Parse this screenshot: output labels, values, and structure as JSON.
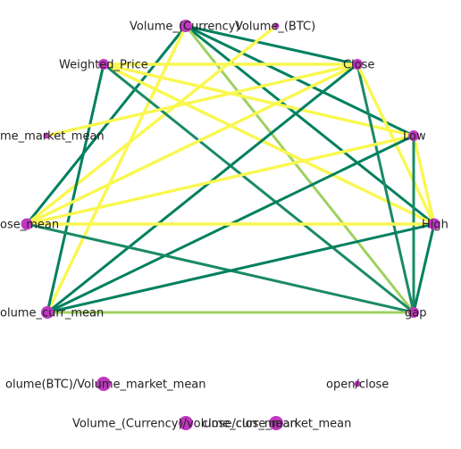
{
  "nodes": [
    {
      "id": "vol_cur",
      "label": "Volume_(Currency)",
      "size": 7,
      "color": "#c037c0"
    },
    {
      "id": "vol_btc",
      "label": "Volume_(BTC)",
      "size": 3.5,
      "color": "#c037c0"
    },
    {
      "id": "wprice",
      "label": "Weighted_Price",
      "size": 6,
      "color": "#c037c0"
    },
    {
      "id": "close",
      "label": "Close",
      "size": 6,
      "color": "#c037c0"
    },
    {
      "id": "vmm",
      "label": "me_market_mean",
      "size": 3.5,
      "color": "#c037c0"
    },
    {
      "id": "low",
      "label": "Low",
      "size": 6,
      "color": "#c037c0"
    },
    {
      "id": "cmean",
      "label": "ose_mean",
      "size": 6.5,
      "color": "#c037c0"
    },
    {
      "id": "high",
      "label": "High",
      "size": 6.5,
      "color": "#c037c0"
    },
    {
      "id": "vcmean",
      "label": "olume_curr_mean",
      "size": 7,
      "color": "#c037c0"
    },
    {
      "id": "gap",
      "label": "gap",
      "size": 6,
      "color": "#c037c0"
    },
    {
      "id": "vbtc_ratio",
      "label": "olume(BTC)/Volume_market_mean",
      "size": 8,
      "color": "#c037c0"
    },
    {
      "id": "openclose",
      "label": "open/close",
      "size": 3.5,
      "color": "#c037c0"
    },
    {
      "id": "vcur_ratio",
      "label": "Volume_(Currency)/volume_curr_mean",
      "size": 8,
      "color": "#c037c0"
    },
    {
      "id": "cc_ratio",
      "label": "close/close_market_mean",
      "size": 8,
      "color": "#c037c0"
    }
  ],
  "edge_colors": {
    "teal": "#00805f",
    "teal2": "#1a8a65",
    "yellow": "#faf750",
    "lightgreen": "#9fd160"
  },
  "edges": [
    {
      "source": "vol_cur",
      "target": "close",
      "color": "teal"
    },
    {
      "source": "vol_cur",
      "target": "low",
      "color": "teal"
    },
    {
      "source": "vol_cur",
      "target": "high",
      "color": "teal"
    },
    {
      "source": "vol_cur",
      "target": "cmean",
      "color": "teal"
    },
    {
      "source": "vol_cur",
      "target": "vcmean",
      "color": "yellow"
    },
    {
      "source": "vol_cur",
      "target": "gap",
      "color": "lightgreen"
    },
    {
      "source": "vol_btc",
      "target": "cmean",
      "color": "yellow"
    },
    {
      "source": "wprice",
      "target": "close",
      "color": "yellow"
    },
    {
      "source": "wprice",
      "target": "low",
      "color": "yellow"
    },
    {
      "source": "wprice",
      "target": "high",
      "color": "yellow"
    },
    {
      "source": "wprice",
      "target": "vcmean",
      "color": "teal"
    },
    {
      "source": "wprice",
      "target": "gap",
      "color": "teal2"
    },
    {
      "source": "close",
      "target": "vmm",
      "color": "yellow"
    },
    {
      "source": "close",
      "target": "cmean",
      "color": "yellow"
    },
    {
      "source": "close",
      "target": "vcmean",
      "color": "teal"
    },
    {
      "source": "close",
      "target": "gap",
      "color": "teal2"
    },
    {
      "source": "close",
      "target": "high",
      "color": "yellow"
    },
    {
      "source": "low",
      "target": "cmean",
      "color": "yellow"
    },
    {
      "source": "low",
      "target": "vcmean",
      "color": "teal"
    },
    {
      "source": "low",
      "target": "high",
      "color": "yellow"
    },
    {
      "source": "low",
      "target": "gap",
      "color": "teal2"
    },
    {
      "source": "cmean",
      "target": "high",
      "color": "yellow"
    },
    {
      "source": "cmean",
      "target": "gap",
      "color": "teal2"
    },
    {
      "source": "high",
      "target": "vcmean",
      "color": "teal"
    },
    {
      "source": "high",
      "target": "gap",
      "color": "teal"
    },
    {
      "source": "vcmean",
      "target": "gap",
      "color": "lightgreen"
    }
  ]
}
